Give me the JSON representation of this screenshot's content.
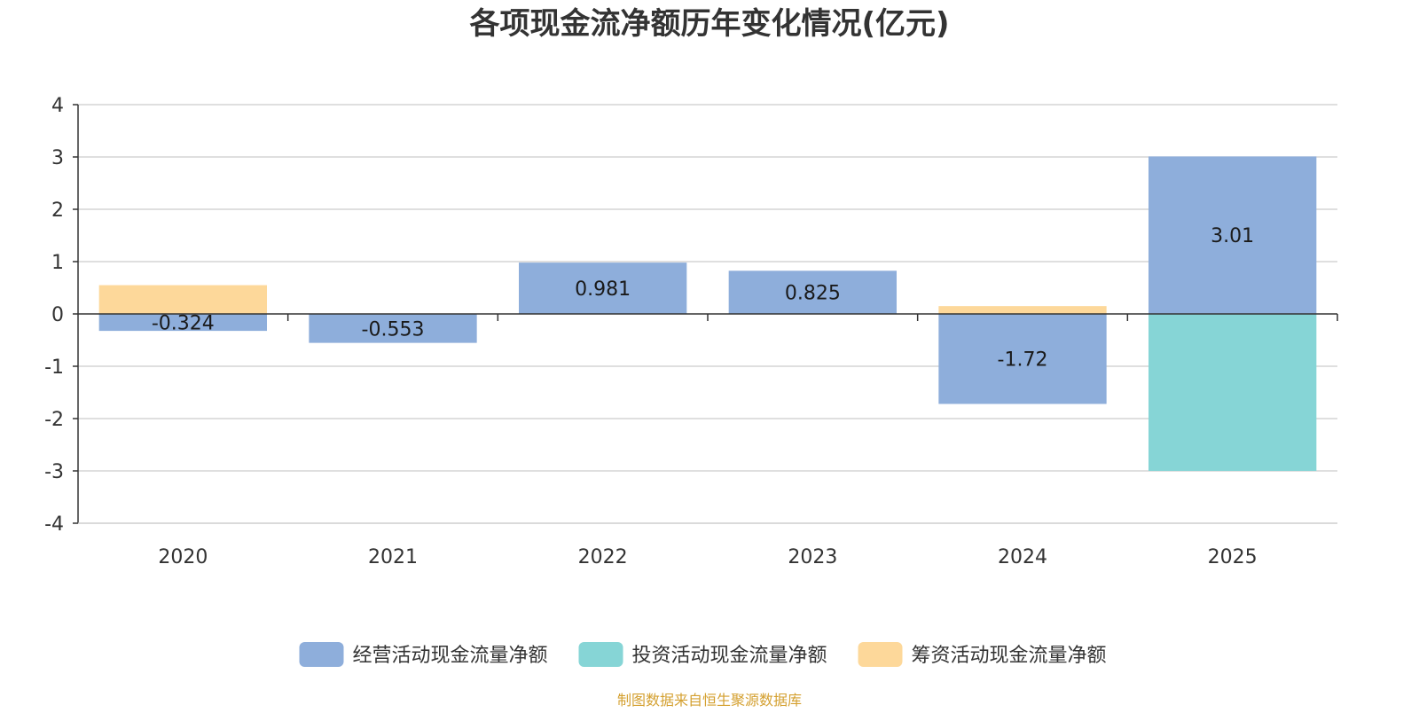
{
  "chart_data": {
    "type": "bar",
    "stacked": true,
    "title": "各项现金流净额历年变化情况(亿元)",
    "categories": [
      "2020",
      "2021",
      "2022",
      "2023",
      "2024",
      "2025"
    ],
    "y_ticks": [
      "-4",
      "-3",
      "-2",
      "-1",
      "0",
      "1",
      "2",
      "3",
      "4"
    ],
    "ylim": [
      -4,
      4
    ],
    "grid": true,
    "legend_position": "bottom",
    "series": [
      {
        "name": "经营活动现金流量净额",
        "color": "#8eaedb",
        "values": [
          -0.324,
          -0.553,
          0.981,
          0.825,
          -1.72,
          3.01
        ],
        "labels": [
          "-0.324",
          "-0.553",
          "0.981",
          "0.825",
          "-1.72",
          "3.01"
        ]
      },
      {
        "name": "投资活动现金流量净额",
        "color": "#86d5d6",
        "values": [
          0,
          0,
          0,
          0,
          0,
          -3.0
        ],
        "labels": [
          "",
          "",
          "",
          "",
          "",
          ""
        ]
      },
      {
        "name": "筹资活动现金流量净额",
        "color": "#fdd89a",
        "values": [
          0.55,
          0,
          0,
          0,
          0.15,
          0
        ],
        "labels": [
          "",
          "",
          "",
          "",
          "",
          ""
        ]
      }
    ],
    "source": "制图数据来自恒生聚源数据库",
    "source_color": "#d4a030",
    "axis_color": "#333333",
    "grid_color": "#cccccc"
  }
}
